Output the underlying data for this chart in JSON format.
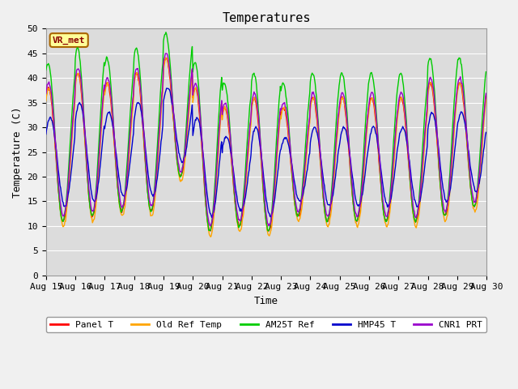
{
  "title": "Temperatures",
  "xlabel": "Time",
  "ylabel": "Temperature (C)",
  "ylim": [
    0,
    50
  ],
  "yticks": [
    0,
    5,
    10,
    15,
    20,
    25,
    30,
    35,
    40,
    45,
    50
  ],
  "x_labels": [
    "Aug 15",
    "Aug 16",
    "Aug 17",
    "Aug 18",
    "Aug 19",
    "Aug 20",
    "Aug 21",
    "Aug 22",
    "Aug 23",
    "Aug 24",
    "Aug 25",
    "Aug 26",
    "Aug 27",
    "Aug 28",
    "Aug 29",
    "Aug 30"
  ],
  "annotation_text": "VR_met",
  "annotation_facecolor": "#FFFF99",
  "annotation_edgecolor": "#AA6600",
  "series_names": [
    "Panel T",
    "Old Ref Temp",
    "AM25T Ref",
    "HMP45 T",
    "CNR1 PRT"
  ],
  "series_colors": [
    "#FF0000",
    "#FFA500",
    "#00CC00",
    "#0000CC",
    "#9900CC"
  ],
  "plot_background": "#DCDCDC",
  "fig_background": "#F0F0F0",
  "grid_color": "#FFFFFF",
  "title_fontsize": 11,
  "axis_label_fontsize": 9,
  "tick_fontsize": 8,
  "legend_fontsize": 8,
  "linewidth": 1.0,
  "mins": [
    11,
    12,
    13,
    13,
    20,
    9,
    10,
    9,
    12,
    11,
    11,
    11,
    11,
    12,
    14
  ],
  "maxs": [
    40,
    43,
    41,
    43,
    46,
    40,
    36,
    38,
    36,
    38,
    38,
    38,
    38,
    41,
    41
  ],
  "phase_offsets": [
    0.0,
    0.015,
    -0.01,
    0.06,
    0.01
  ],
  "min_offsets": [
    0,
    -1,
    0,
    3,
    1
  ],
  "max_offsets": [
    -2,
    -2,
    3,
    -8,
    -1
  ]
}
